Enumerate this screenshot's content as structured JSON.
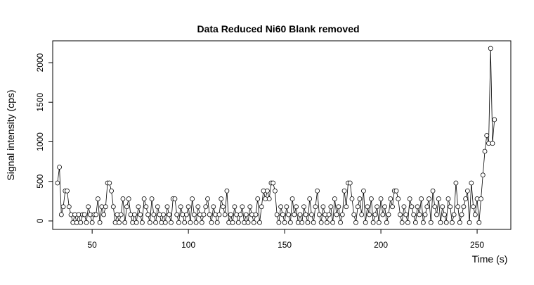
{
  "chart_data": {
    "type": "line",
    "markers": true,
    "color": "#000000",
    "title": "Data Reduced Ni60 Blank removed",
    "xlabel": "Time (s)",
    "ylabel": "Signal intensity (cps)",
    "xlim": [
      29.5,
      267.5
    ],
    "ylim": [
      -107,
      2276
    ],
    "xticks": [
      50,
      100,
      150,
      200,
      250
    ],
    "yticks": [
      0,
      500,
      1000,
      1500,
      2000
    ],
    "x": [
      32,
      33,
      34,
      35,
      36,
      37,
      38,
      39,
      40,
      41,
      42,
      43,
      44,
      45,
      46,
      47,
      48,
      49,
      50,
      51,
      52,
      53,
      54,
      55,
      56,
      57,
      58,
      59,
      60,
      61,
      62,
      63,
      64,
      65,
      66,
      67,
      68,
      69,
      70,
      71,
      72,
      73,
      74,
      75,
      76,
      77,
      78,
      79,
      80,
      81,
      82,
      83,
      84,
      85,
      86,
      87,
      88,
      89,
      90,
      91,
      92,
      93,
      94,
      95,
      96,
      97,
      98,
      99,
      100,
      101,
      102,
      103,
      104,
      105,
      106,
      107,
      108,
      109,
      110,
      111,
      112,
      113,
      114,
      115,
      116,
      117,
      118,
      119,
      120,
      121,
      122,
      123,
      124,
      125,
      126,
      127,
      128,
      129,
      130,
      131,
      132,
      133,
      134,
      135,
      136,
      137,
      138,
      139,
      140,
      141,
      142,
      143,
      144,
      145,
      146,
      147,
      148,
      149,
      150,
      151,
      152,
      153,
      154,
      155,
      156,
      157,
      158,
      159,
      160,
      161,
      162,
      163,
      164,
      165,
      166,
      167,
      168,
      169,
      170,
      171,
      172,
      173,
      174,
      175,
      176,
      177,
      178,
      179,
      180,
      181,
      182,
      183,
      184,
      185,
      186,
      187,
      188,
      189,
      190,
      191,
      192,
      193,
      194,
      195,
      196,
      197,
      198,
      199,
      200,
      201,
      202,
      203,
      204,
      205,
      206,
      207,
      208,
      209,
      210,
      211,
      212,
      213,
      214,
      215,
      216,
      217,
      218,
      219,
      220,
      221,
      222,
      223,
      224,
      225,
      226,
      227,
      228,
      229,
      230,
      231,
      232,
      233,
      234,
      235,
      236,
      237,
      238,
      239,
      240,
      241,
      242,
      243,
      244,
      245,
      246,
      247,
      248,
      249,
      250,
      251,
      252,
      253,
      254,
      255,
      256,
      257,
      258,
      259
    ],
    "values": [
      480,
      680,
      80,
      180,
      380,
      380,
      180,
      80,
      -20,
      80,
      -20,
      80,
      -20,
      80,
      80,
      -20,
      180,
      80,
      -20,
      80,
      80,
      280,
      -20,
      180,
      80,
      180,
      480,
      480,
      380,
      180,
      -20,
      80,
      -20,
      80,
      280,
      -20,
      180,
      280,
      80,
      -20,
      80,
      -20,
      180,
      80,
      -20,
      280,
      180,
      80,
      -20,
      280,
      80,
      -20,
      180,
      80,
      -20,
      80,
      -20,
      180,
      80,
      -20,
      280,
      280,
      80,
      -20,
      180,
      80,
      -20,
      80,
      180,
      -20,
      280,
      80,
      -20,
      180,
      80,
      -20,
      80,
      180,
      280,
      80,
      -20,
      180,
      80,
      -20,
      80,
      280,
      180,
      80,
      380,
      -20,
      80,
      -20,
      180,
      80,
      -20,
      80,
      180,
      -20,
      80,
      -20,
      180,
      80,
      -20,
      80,
      280,
      -20,
      180,
      380,
      280,
      380,
      280,
      480,
      480,
      380,
      80,
      -20,
      180,
      80,
      -20,
      180,
      80,
      -20,
      280,
      80,
      180,
      -20,
      80,
      -20,
      180,
      80,
      -20,
      280,
      80,
      -20,
      180,
      380,
      80,
      -20,
      180,
      80,
      -20,
      80,
      180,
      -20,
      280,
      80,
      180,
      -20,
      80,
      380,
      180,
      480,
      480,
      280,
      80,
      -20,
      180,
      280,
      80,
      380,
      -20,
      180,
      80,
      280,
      -20,
      80,
      180,
      -20,
      280,
      80,
      180,
      -20,
      80,
      280,
      180,
      380,
      380,
      280,
      80,
      -20,
      180,
      80,
      -20,
      280,
      180,
      80,
      -20,
      180,
      80,
      280,
      -20,
      80,
      180,
      280,
      -20,
      380,
      180,
      80,
      280,
      -20,
      180,
      80,
      -20,
      280,
      180,
      -20,
      80,
      480,
      180,
      -20,
      80,
      180,
      280,
      380,
      -20,
      480,
      180,
      80,
      280,
      -20,
      280,
      580,
      880,
      1080,
      980,
      2180,
      980,
      1280
    ]
  }
}
